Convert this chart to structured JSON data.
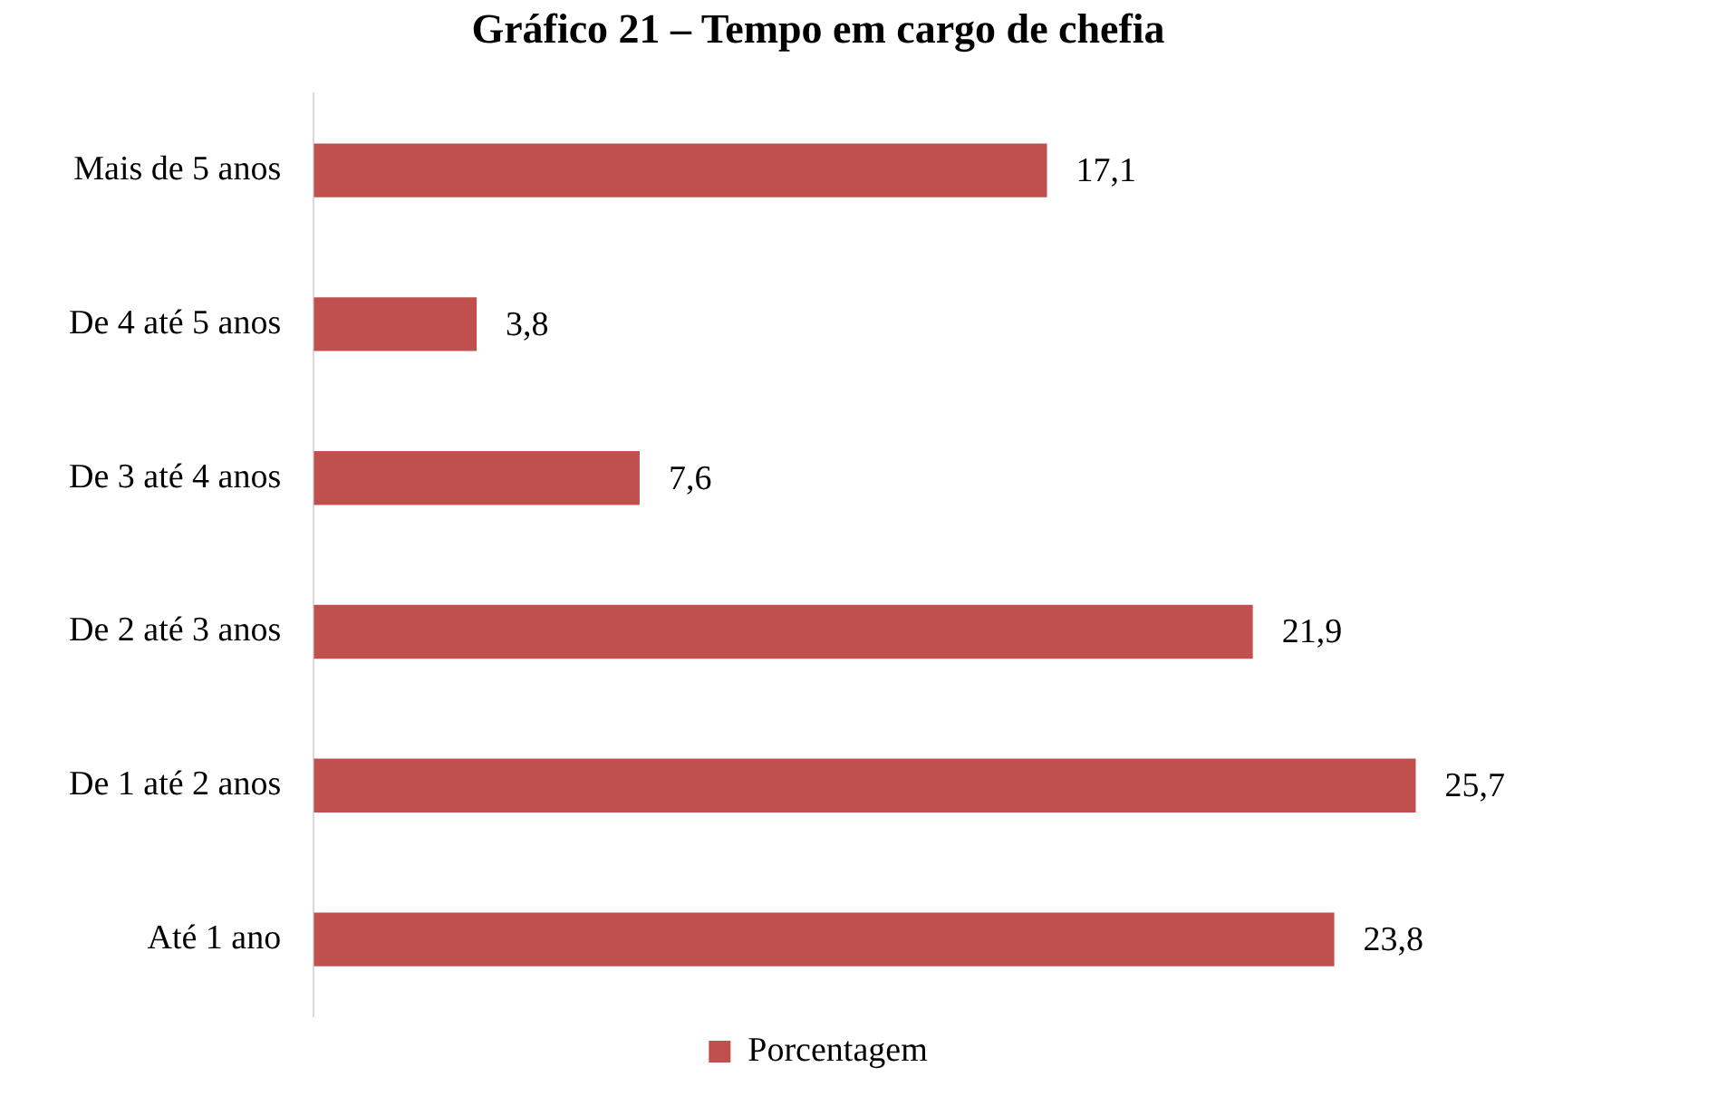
{
  "chart_data": {
    "type": "bar",
    "orientation": "horizontal",
    "title": "Gráfico 21 – Tempo em cargo de chefia",
    "categories": [
      "Mais de 5 anos",
      "De 4 até 5 anos",
      "De 3 até 4 anos",
      "De 2 até 3 anos",
      "De 1 até 2 anos",
      "Até 1 ano"
    ],
    "series": [
      {
        "name": "Porcentagem",
        "color": "#c0504d",
        "values": [
          17.1,
          3.8,
          7.6,
          21.9,
          25.7,
          23.8
        ],
        "value_labels": [
          "17,1",
          "3,8",
          "7,6",
          "21,9",
          "25,7",
          "23,8"
        ]
      }
    ],
    "legend": "bottom",
    "grid": false
  }
}
